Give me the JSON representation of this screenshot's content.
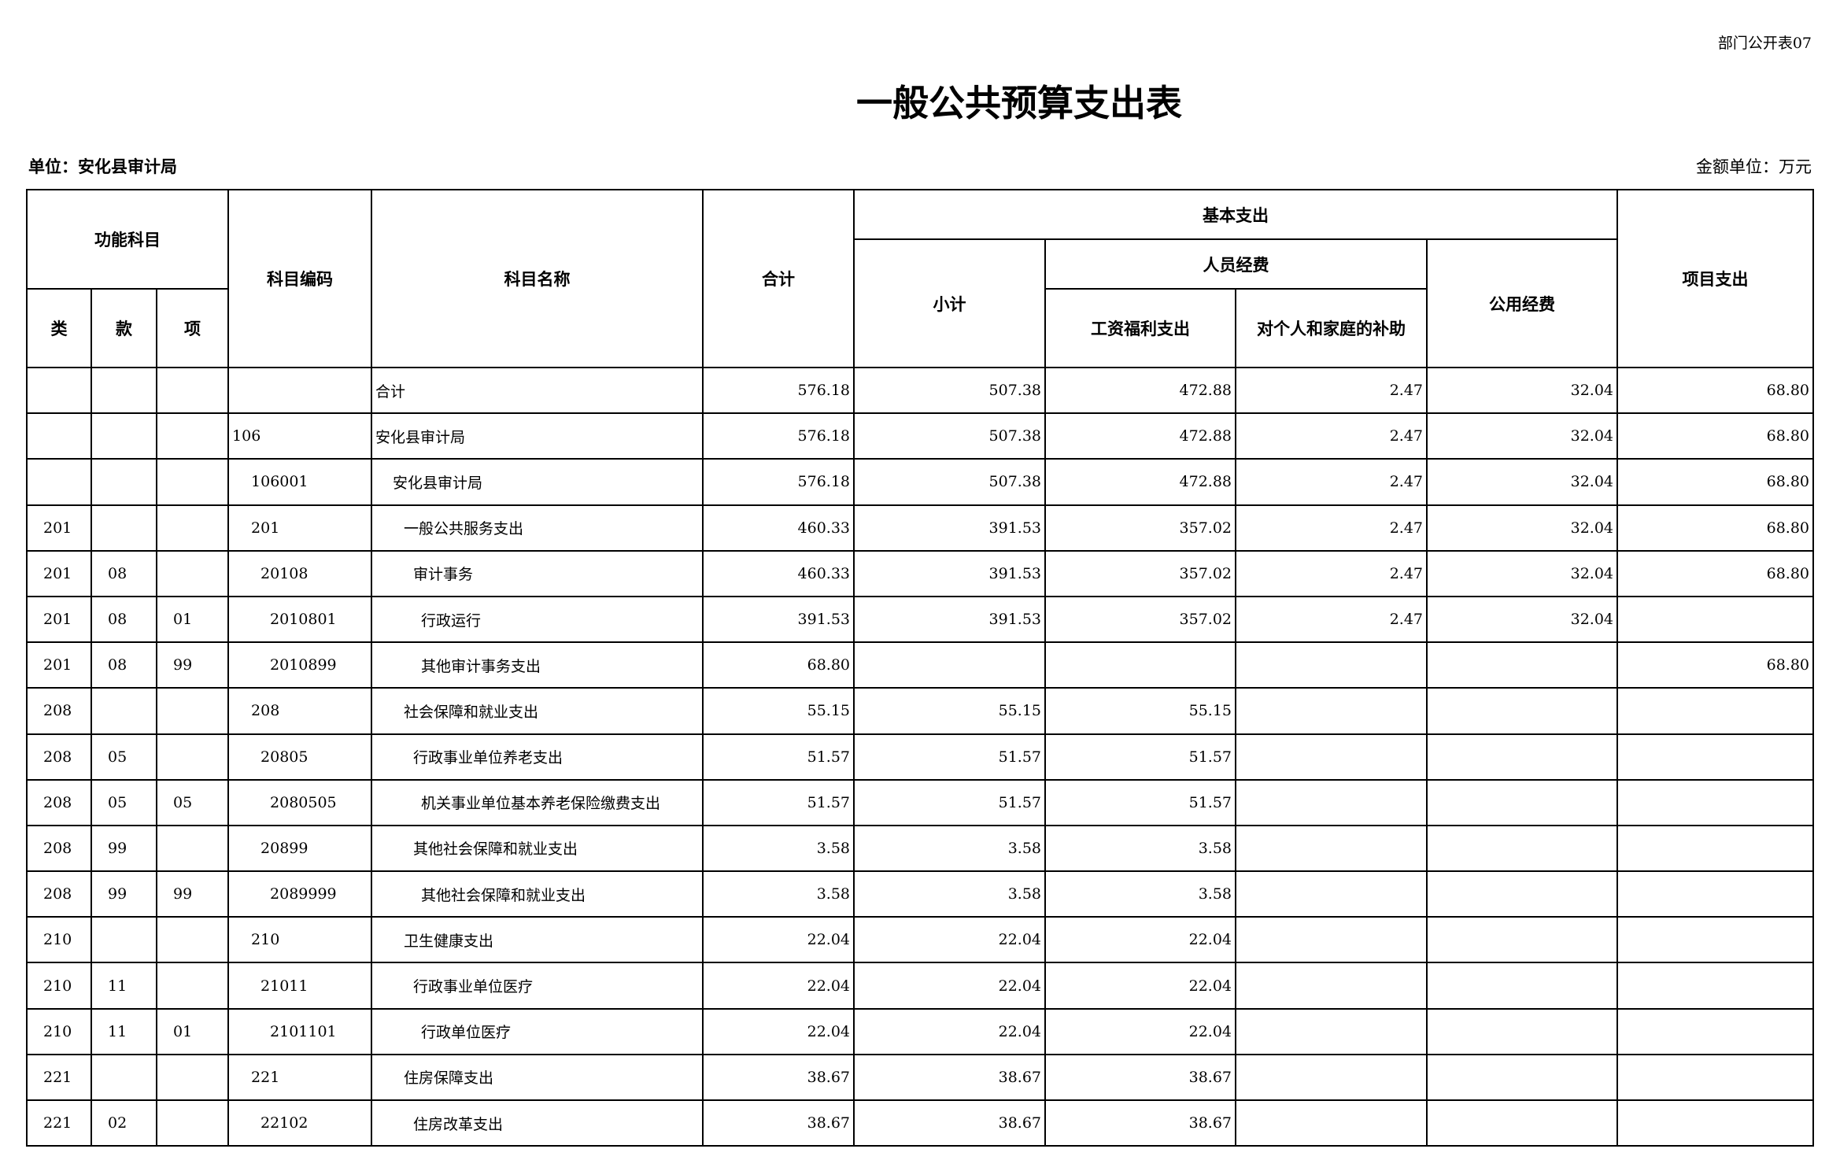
{
  "form_no": "部门公开表07",
  "title": "一般公共预算支出表",
  "unit": "单位：安化县审计局",
  "money_unit": "金额单位：万元",
  "headers": {
    "function_subject": "功能科目",
    "lei": "类",
    "kuan": "款",
    "xiang": "项",
    "code": "科目编码",
    "name": "科目名称",
    "total": "合计",
    "basic": "基本支出",
    "subtotal": "小计",
    "personnel": "人员经费",
    "salary": "工资福利支出",
    "subsidy": "对个人和家庭的补助",
    "public": "公用经费",
    "project": "项目支出"
  },
  "rows": [
    {
      "lei": "",
      "kuan": "",
      "xiang": "",
      "code": "",
      "name": "合计",
      "level": 0,
      "total": "576.18",
      "subtotal": "507.38",
      "salary": "472.88",
      "subsidy": "2.47",
      "public": "32.04",
      "project": "68.80"
    },
    {
      "lei": "",
      "kuan": "",
      "xiang": "",
      "code": "106",
      "name": "安化县审计局",
      "level": 0,
      "total": "576.18",
      "subtotal": "507.38",
      "salary": "472.88",
      "subsidy": "2.47",
      "public": "32.04",
      "project": "68.80"
    },
    {
      "lei": "",
      "kuan": "",
      "xiang": "",
      "code": "106001",
      "name": "安化县审计局",
      "level": 1,
      "total": "576.18",
      "subtotal": "507.38",
      "salary": "472.88",
      "subsidy": "2.47",
      "public": "32.04",
      "project": "68.80"
    },
    {
      "lei": "201",
      "kuan": "",
      "xiang": "",
      "code": "201",
      "name": "一般公共服务支出",
      "level": 2,
      "total": "460.33",
      "subtotal": "391.53",
      "salary": "357.02",
      "subsidy": "2.47",
      "public": "32.04",
      "project": "68.80"
    },
    {
      "lei": "201",
      "kuan": "08",
      "xiang": "",
      "code": "20108",
      "name": "审计事务",
      "level": 3,
      "total": "460.33",
      "subtotal": "391.53",
      "salary": "357.02",
      "subsidy": "2.47",
      "public": "32.04",
      "project": "68.80"
    },
    {
      "lei": "201",
      "kuan": "08",
      "xiang": "01",
      "code": "2010801",
      "name": "行政运行",
      "level": 4,
      "total": "391.53",
      "subtotal": "391.53",
      "salary": "357.02",
      "subsidy": "2.47",
      "public": "32.04",
      "project": ""
    },
    {
      "lei": "201",
      "kuan": "08",
      "xiang": "99",
      "code": "2010899",
      "name": "其他审计事务支出",
      "level": 4,
      "total": "68.80",
      "subtotal": "",
      "salary": "",
      "subsidy": "",
      "public": "",
      "project": "68.80"
    },
    {
      "lei": "208",
      "kuan": "",
      "xiang": "",
      "code": "208",
      "name": "社会保障和就业支出",
      "level": 2,
      "total": "55.15",
      "subtotal": "55.15",
      "salary": "55.15",
      "subsidy": "",
      "public": "",
      "project": ""
    },
    {
      "lei": "208",
      "kuan": "05",
      "xiang": "",
      "code": "20805",
      "name": "行政事业单位养老支出",
      "level": 3,
      "total": "51.57",
      "subtotal": "51.57",
      "salary": "51.57",
      "subsidy": "",
      "public": "",
      "project": ""
    },
    {
      "lei": "208",
      "kuan": "05",
      "xiang": "05",
      "code": "2080505",
      "name": "机关事业单位基本养老保险缴费支出",
      "level": 4,
      "total": "51.57",
      "subtotal": "51.57",
      "salary": "51.57",
      "subsidy": "",
      "public": "",
      "project": ""
    },
    {
      "lei": "208",
      "kuan": "99",
      "xiang": "",
      "code": "20899",
      "name": "其他社会保障和就业支出",
      "level": 3,
      "total": "3.58",
      "subtotal": "3.58",
      "salary": "3.58",
      "subsidy": "",
      "public": "",
      "project": ""
    },
    {
      "lei": "208",
      "kuan": "99",
      "xiang": "99",
      "code": "2089999",
      "name": "其他社会保障和就业支出",
      "level": 4,
      "total": "3.58",
      "subtotal": "3.58",
      "salary": "3.58",
      "subsidy": "",
      "public": "",
      "project": ""
    },
    {
      "lei": "210",
      "kuan": "",
      "xiang": "",
      "code": "210",
      "name": "卫生健康支出",
      "level": 2,
      "total": "22.04",
      "subtotal": "22.04",
      "salary": "22.04",
      "subsidy": "",
      "public": "",
      "project": ""
    },
    {
      "lei": "210",
      "kuan": "11",
      "xiang": "",
      "code": "21011",
      "name": "行政事业单位医疗",
      "level": 3,
      "total": "22.04",
      "subtotal": "22.04",
      "salary": "22.04",
      "subsidy": "",
      "public": "",
      "project": ""
    },
    {
      "lei": "210",
      "kuan": "11",
      "xiang": "01",
      "code": "2101101",
      "name": "行政单位医疗",
      "level": 4,
      "total": "22.04",
      "subtotal": "22.04",
      "salary": "22.04",
      "subsidy": "",
      "public": "",
      "project": ""
    },
    {
      "lei": "221",
      "kuan": "",
      "xiang": "",
      "code": "221",
      "name": "住房保障支出",
      "level": 2,
      "total": "38.67",
      "subtotal": "38.67",
      "salary": "38.67",
      "subsidy": "",
      "public": "",
      "project": ""
    },
    {
      "lei": "221",
      "kuan": "02",
      "xiang": "",
      "code": "22102",
      "name": "住房改革支出",
      "level": 3,
      "total": "38.67",
      "subtotal": "38.67",
      "salary": "38.67",
      "subsidy": "",
      "public": "",
      "project": ""
    }
  ]
}
